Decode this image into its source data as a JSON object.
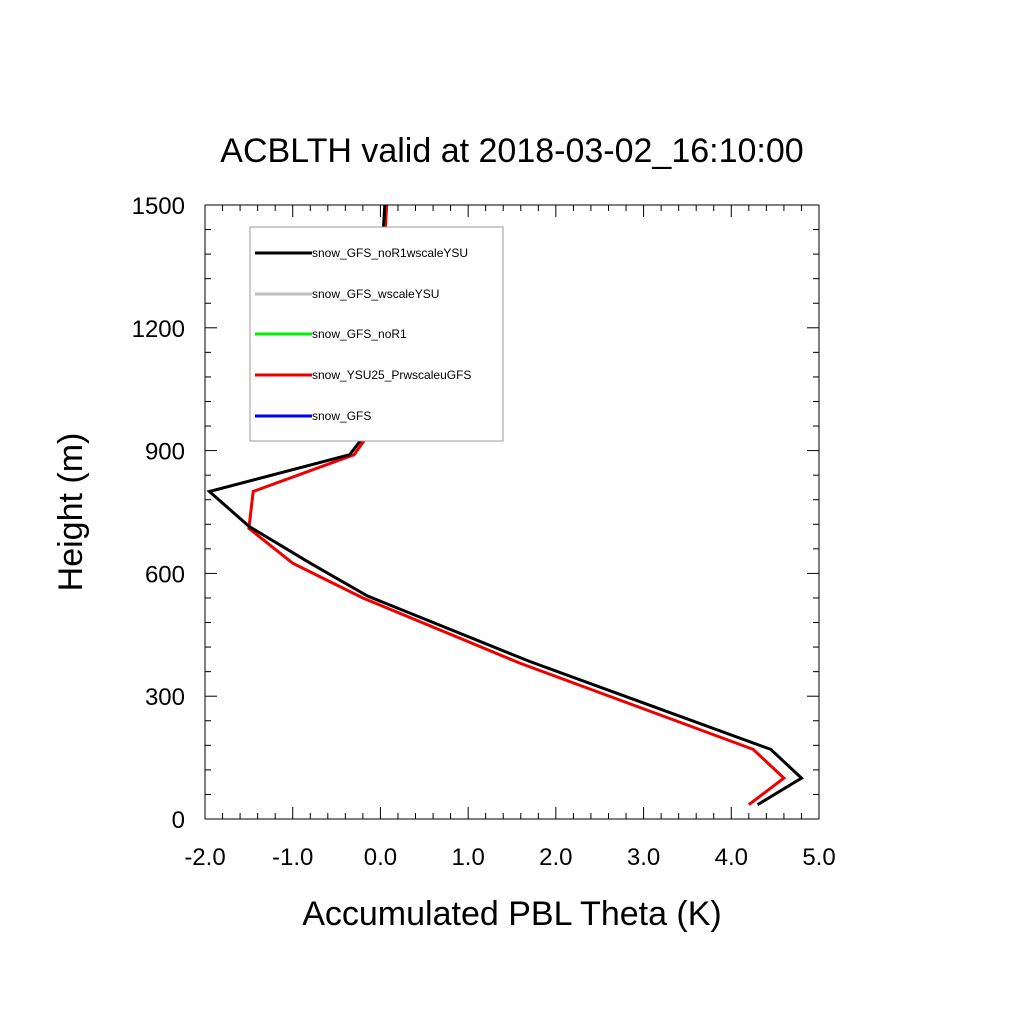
{
  "chart_data": {
    "type": "line",
    "title": "ACBLTH valid at 2018-03-02_16:10:00",
    "xlabel": "Accumulated PBL Theta (K)",
    "ylabel": "Height (m)",
    "xlim": [
      -2.0,
      5.0
    ],
    "ylim": [
      0,
      1500
    ],
    "xticks": [
      -2.0,
      -1.0,
      0.0,
      1.0,
      2.0,
      3.0,
      4.0,
      5.0
    ],
    "xtick_labels": [
      "-2.0",
      "-1.0",
      "0.0",
      "1.0",
      "2.0",
      "3.0",
      "4.0",
      "5.0"
    ],
    "yticks": [
      0,
      300,
      600,
      900,
      1200,
      1500
    ],
    "ytick_labels": [
      "0",
      "300",
      "600",
      "900",
      "1200",
      "1500"
    ],
    "grid": false,
    "legend_position": "top-left",
    "series": [
      {
        "name": "snow_GFS_noR1wscaleYSU",
        "color": "#000000",
        "points": [
          [
            4.3,
            35
          ],
          [
            4.8,
            100
          ],
          [
            4.45,
            170
          ],
          [
            1.7,
            385
          ],
          [
            -0.15,
            545
          ],
          [
            -0.8,
            625
          ],
          [
            -1.5,
            715
          ],
          [
            -1.95,
            800
          ],
          [
            -0.35,
            890
          ],
          [
            -0.1,
            960
          ],
          [
            -0.02,
            1080
          ],
          [
            -0.01,
            1290
          ],
          [
            0.05,
            1500
          ]
        ],
        "drawn": true
      },
      {
        "name": "snow_GFS_wscaleYSU",
        "color": "#bdbdbd",
        "points": [],
        "drawn": false
      },
      {
        "name": "snow_GFS_noR1",
        "color": "#00ee00",
        "points": [],
        "drawn": false
      },
      {
        "name": "snow_YSU25_PrwscaleuGFS",
        "color": "#ee0000",
        "points": [
          [
            4.2,
            35
          ],
          [
            4.6,
            100
          ],
          [
            4.25,
            170
          ],
          [
            1.6,
            380
          ],
          [
            -0.2,
            540
          ],
          [
            -1.0,
            625
          ],
          [
            -1.5,
            710
          ],
          [
            -1.45,
            800
          ],
          [
            -0.3,
            890
          ],
          [
            0.0,
            980
          ],
          [
            0.02,
            1200
          ],
          [
            0.02,
            1290
          ],
          [
            0.07,
            1500
          ]
        ],
        "drawn": true
      },
      {
        "name": "snow_GFS",
        "color": "#0000ee",
        "points": [],
        "drawn": false
      }
    ]
  }
}
